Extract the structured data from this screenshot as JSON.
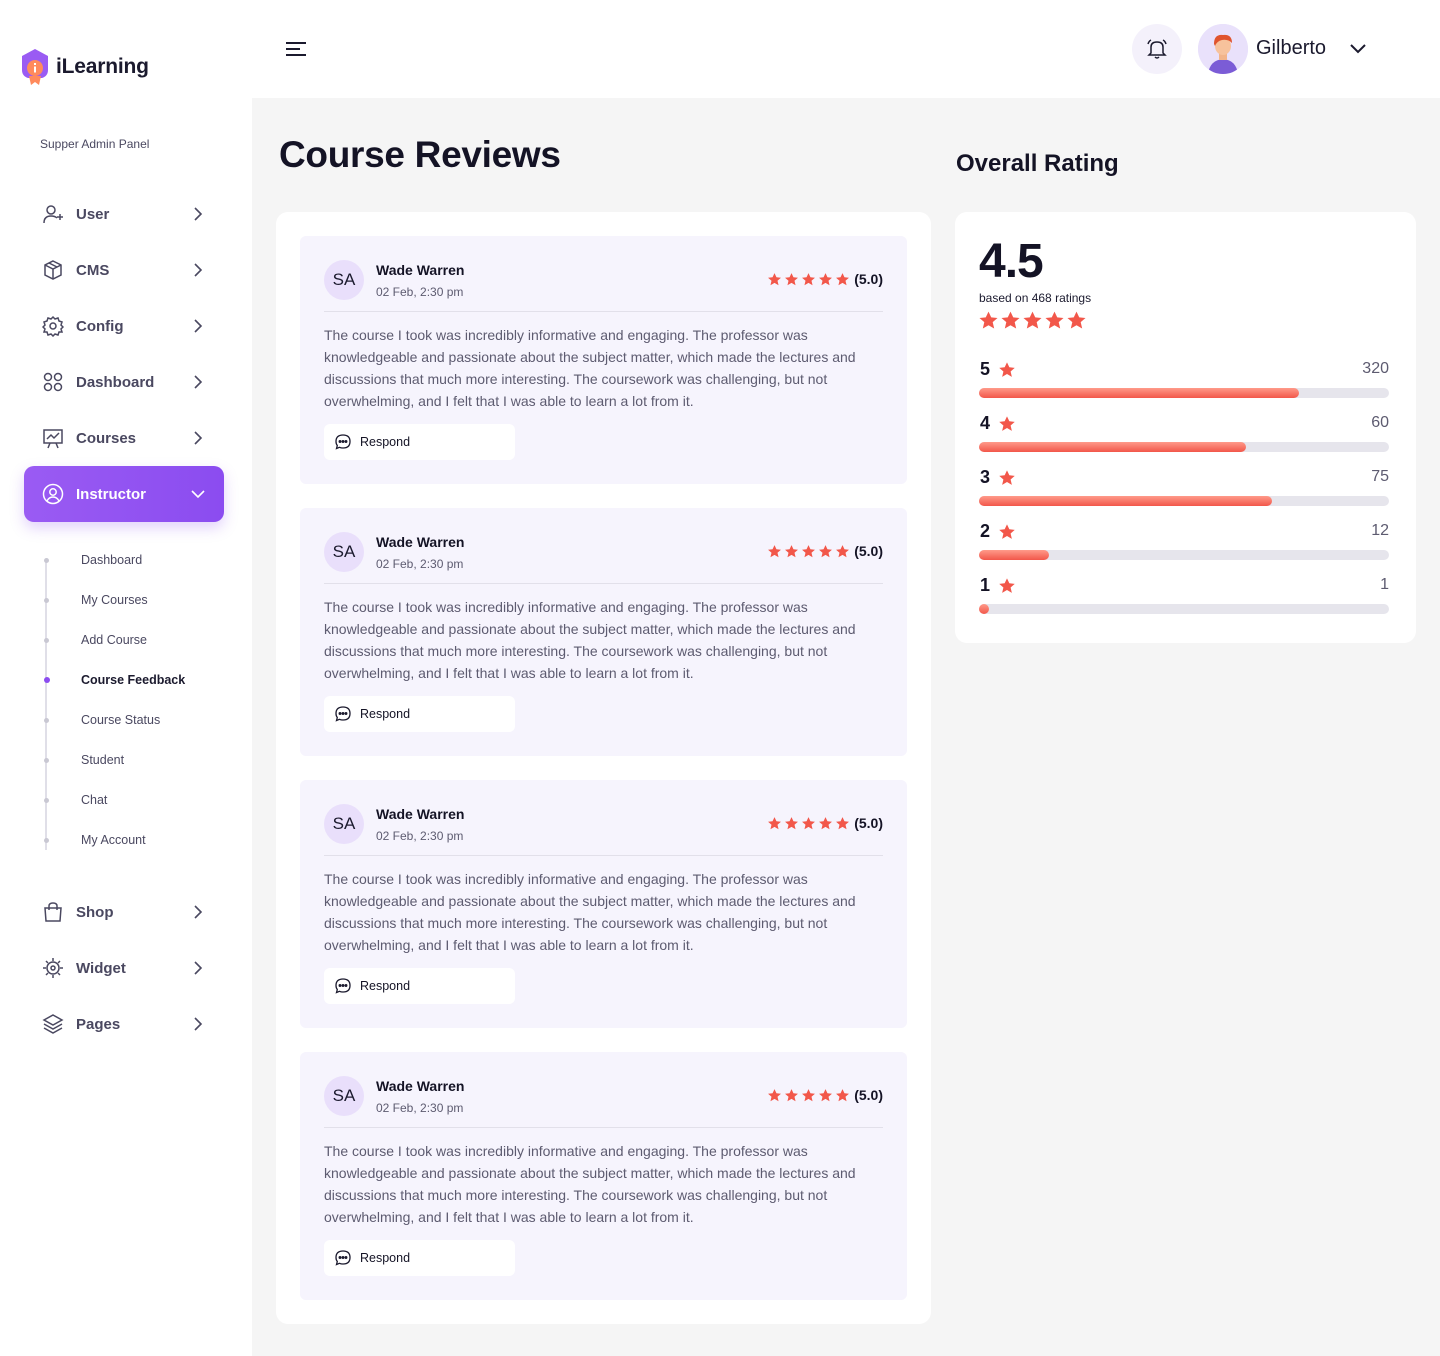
{
  "brand": {
    "name": "iLearning"
  },
  "sidebar": {
    "panel_label": "Supper Admin Panel",
    "items": [
      {
        "label": "User",
        "icon": "user-add-icon"
      },
      {
        "label": "CMS",
        "icon": "box-icon"
      },
      {
        "label": "Config",
        "icon": "gear-icon"
      },
      {
        "label": "Dashboard",
        "icon": "grid-icon"
      },
      {
        "label": "Courses",
        "icon": "presentation-chart-icon"
      },
      {
        "label": "Instructor",
        "icon": "user-circle-icon"
      },
      {
        "label": "Shop",
        "icon": "shopping-bag-icon"
      },
      {
        "label": "Widget",
        "icon": "cog-widget-icon"
      },
      {
        "label": "Pages",
        "icon": "layers-icon"
      }
    ],
    "instructor_sub": [
      {
        "label": "Dashboard"
      },
      {
        "label": "My Courses"
      },
      {
        "label": "Add Course"
      },
      {
        "label": "Course Feedback"
      },
      {
        "label": "Course Status"
      },
      {
        "label": "Student"
      },
      {
        "label": "Chat"
      },
      {
        "label": "My Account"
      }
    ],
    "active_item": "Instructor",
    "active_sub": "Course Feedback"
  },
  "header": {
    "user_name": "Gilberto"
  },
  "main": {
    "title": "Course Reviews",
    "reviews": [
      {
        "initials": "SA",
        "name": "Wade Warren",
        "date": "02 Feb, 2:30 pm",
        "stars": 5,
        "score": "(5.0)",
        "text": "The course I took was incredibly informative and engaging. The professor was knowledgeable and passionate about the subject matter, which made the lectures and discussions that much more interesting. The coursework was challenging, but not overwhelming, and I felt that I was able to learn a lot from it.",
        "respond_label": "Respond"
      },
      {
        "initials": "SA",
        "name": "Wade Warren",
        "date": "02 Feb, 2:30 pm",
        "stars": 5,
        "score": "(5.0)",
        "text": "The course I took was incredibly informative and engaging. The professor was knowledgeable and passionate about the subject matter, which made the lectures and discussions that much more interesting. The coursework was challenging, but not overwhelming, and I felt that I was able to learn a lot from it.",
        "respond_label": "Respond"
      },
      {
        "initials": "SA",
        "name": "Wade Warren",
        "date": "02 Feb, 2:30 pm",
        "stars": 5,
        "score": "(5.0)",
        "text": "The course I took was incredibly informative and engaging. The professor was knowledgeable and passionate about the subject matter, which made the lectures and discussions that much more interesting. The coursework was challenging, but not overwhelming, and I felt that I was able to learn a lot from it.",
        "respond_label": "Respond"
      },
      {
        "initials": "SA",
        "name": "Wade Warren",
        "date": "02 Feb, 2:30 pm",
        "stars": 5,
        "score": "(5.0)",
        "text": "The course I took was incredibly informative and engaging. The professor was knowledgeable and passionate about the subject matter, which made the lectures and discussions that much more interesting. The coursework was challenging, but not overwhelming, and I felt that I was able to learn a lot from it.",
        "respond_label": "Respond"
      }
    ]
  },
  "rating": {
    "title": "Overall Rating",
    "score": "4.5",
    "based_on": "based on 468 ratings",
    "stars": 5,
    "breakdown": [
      {
        "stars": "5",
        "count": "320",
        "fill": 0.78
      },
      {
        "stars": "4",
        "count": "60",
        "fill": 0.65
      },
      {
        "stars": "3",
        "count": "75",
        "fill": 0.715
      },
      {
        "stars": "2",
        "count": "12",
        "fill": 0.17
      },
      {
        "stars": "1",
        "count": "1",
        "fill": 0.025
      }
    ]
  },
  "colors": {
    "accent": "#8b4cf0",
    "star": "#f2574a",
    "bar_track": "#e6e5ec",
    "review_bg": "#f6f4fd"
  }
}
